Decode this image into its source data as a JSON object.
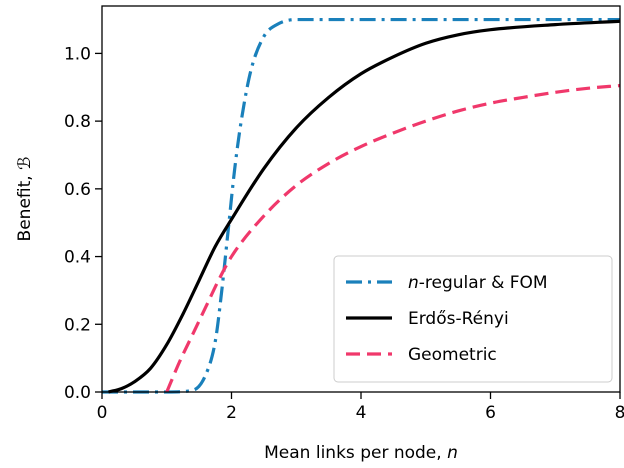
{
  "chart_data": {
    "type": "line",
    "xlabel": "Mean links per node, ",
    "xlabel_var": "n",
    "ylabel": "Benefit, ",
    "ylabel_var": "ℬ",
    "xlim": [
      0,
      8
    ],
    "ylim": [
      0,
      1.14
    ],
    "xticks": [
      0,
      2,
      4,
      6,
      8
    ],
    "yticks": [
      0.0,
      0.2,
      0.4,
      0.6,
      0.8,
      1.0
    ],
    "xtick_labels": [
      "0",
      "2",
      "4",
      "6",
      "8"
    ],
    "ytick_labels": [
      "0.0",
      "0.2",
      "0.4",
      "0.6",
      "0.8",
      "1.0"
    ],
    "grid": false,
    "legend_position": "lower-right",
    "series": [
      {
        "name_var": "n",
        "name": "-regular & FOM",
        "color": "#1a80bb",
        "style": "dashdot",
        "x": [
          0.0,
          0.5,
          1.0,
          1.4,
          1.6,
          1.75,
          1.85,
          1.95,
          2.05,
          2.15,
          2.3,
          2.5,
          2.7,
          3.0,
          4.0,
          5.0,
          6.0,
          7.0,
          8.0
        ],
        "y": [
          0.0,
          0.0,
          0.0,
          0.005,
          0.05,
          0.15,
          0.3,
          0.48,
          0.66,
          0.8,
          0.95,
          1.05,
          1.085,
          1.1,
          1.1,
          1.1,
          1.1,
          1.1,
          1.1
        ]
      },
      {
        "name": "Erdős-Rényi",
        "color": "#000000",
        "style": "solid",
        "x": [
          0.1,
          0.3,
          0.5,
          0.75,
          1.0,
          1.25,
          1.5,
          1.75,
          2.0,
          2.5,
          3.0,
          3.5,
          4.0,
          4.5,
          5.0,
          5.5,
          6.0,
          7.0,
          8.0
        ],
        "y": [
          0.0,
          0.01,
          0.03,
          0.07,
          0.14,
          0.23,
          0.33,
          0.43,
          0.51,
          0.66,
          0.78,
          0.87,
          0.94,
          0.99,
          1.03,
          1.055,
          1.07,
          1.085,
          1.095
        ]
      },
      {
        "name": "Geometric",
        "color": "#f0386b",
        "style": "dashed",
        "x": [
          1.0,
          1.2,
          1.4,
          1.6,
          1.8,
          2.0,
          2.5,
          3.0,
          3.5,
          4.0,
          4.5,
          5.0,
          5.5,
          6.0,
          6.5,
          7.0,
          7.5,
          8.0
        ],
        "y": [
          0.0,
          0.09,
          0.17,
          0.25,
          0.33,
          0.4,
          0.52,
          0.61,
          0.675,
          0.725,
          0.765,
          0.8,
          0.83,
          0.853,
          0.87,
          0.885,
          0.897,
          0.905
        ]
      }
    ]
  }
}
